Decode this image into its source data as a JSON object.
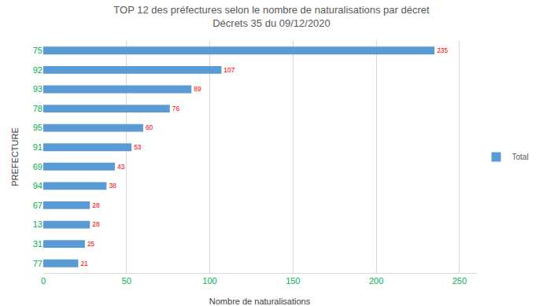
{
  "chart_data": {
    "type": "bar",
    "orientation": "horizontal",
    "title": "TOP 12 des préfectures selon le nombre de naturalisations par décret",
    "subtitle": "Décrets 35 du 09/12/2020",
    "x_label": "Nombre de naturalisations",
    "y_label": "PREFECTURE",
    "categories": [
      "75",
      "92",
      "93",
      "78",
      "95",
      "91",
      "69",
      "94",
      "67",
      "13",
      "31",
      "77"
    ],
    "series": [
      {
        "name": "Total",
        "color": "#5b9bd5",
        "values": [
          235,
          107,
          89,
          76,
          60,
          53,
          43,
          38,
          28,
          28,
          25,
          21
        ]
      }
    ],
    "xlim": [
      0,
      260
    ],
    "xticks": [
      0,
      50,
      100,
      150,
      200,
      250
    ],
    "grid": true,
    "data_labels": true,
    "legend": "right"
  }
}
